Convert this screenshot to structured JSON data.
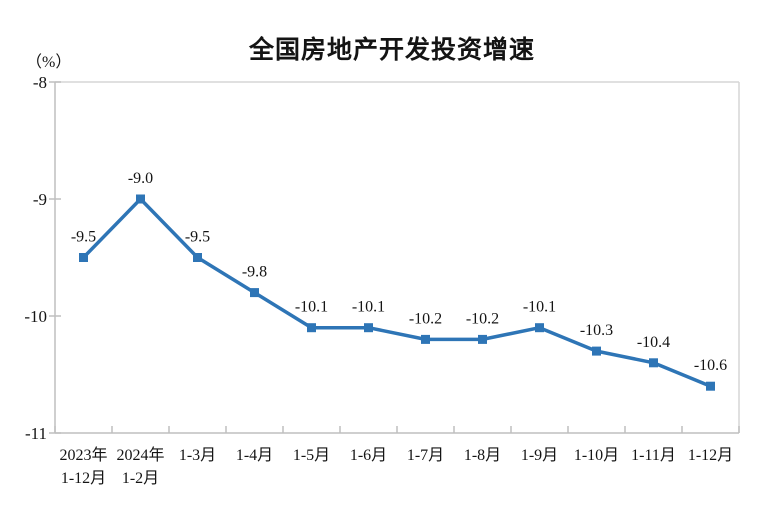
{
  "chart_data": {
    "type": "line",
    "title": "全国房地产开发投资增速",
    "unit_label": "（%）",
    "categories": [
      "2023年\n1-12月",
      "2024年\n1-2月",
      "1-3月",
      "1-4月",
      "1-5月",
      "1-6月",
      "1-7月",
      "1-8月",
      "1-9月",
      "1-10月",
      "1-11月",
      "1-12月"
    ],
    "values": [
      -9.5,
      -9.0,
      -9.5,
      -9.8,
      -10.1,
      -10.1,
      -10.2,
      -10.2,
      -10.1,
      -10.3,
      -10.4,
      -10.6
    ],
    "data_labels": [
      "-9.5",
      "-9.0",
      "-9.5",
      "-9.8",
      "-10.1",
      "-10.1",
      "-10.2",
      "-10.2",
      "-10.1",
      "-10.3",
      "-10.4",
      "-10.6"
    ],
    "ylim": [
      -11,
      -8
    ],
    "yticks": [
      "-8",
      "-9",
      "-10",
      "-11"
    ],
    "ytick_values": [
      -8,
      -9,
      -10,
      -11
    ],
    "grid": false,
    "legend": null,
    "line_color": "#2E75B6",
    "marker": "square",
    "axis_color": "#BFBFBF",
    "border_color": "#D6D6D6",
    "text_color": "#141414"
  }
}
